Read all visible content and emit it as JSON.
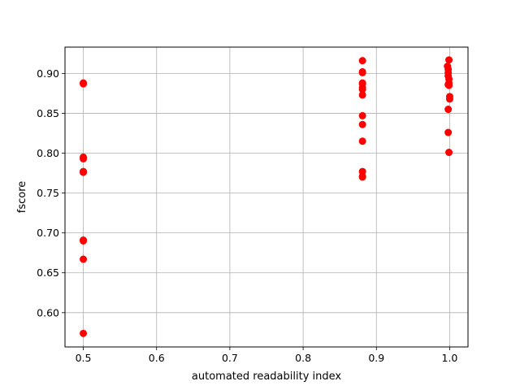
{
  "chart_data": {
    "type": "scatter",
    "title": "",
    "xlabel": "automated readability index",
    "ylabel": "fscore",
    "xlim": [
      0.475,
      1.025
    ],
    "ylim": [
      0.557,
      0.933
    ],
    "xticks": [
      0.5,
      0.6,
      0.7,
      0.8,
      0.9,
      1.0
    ],
    "xtick_labels": [
      "0.5",
      "0.6",
      "0.7",
      "0.8",
      "0.9",
      "1.0"
    ],
    "yticks": [
      0.6,
      0.65,
      0.7,
      0.75,
      0.8,
      0.85,
      0.9
    ],
    "ytick_labels": [
      "0.60",
      "0.65",
      "0.70",
      "0.75",
      "0.80",
      "0.85",
      "0.90"
    ],
    "grid": true,
    "marker_color": "#ff0000",
    "series": [
      {
        "x": [
          0.5,
          0.5,
          0.5,
          0.5,
          0.5,
          0.5,
          0.5,
          0.5,
          0.5,
          0.5,
          0.881,
          0.881,
          0.881,
          0.881,
          0.881,
          0.881,
          0.881,
          0.881,
          0.881,
          0.881,
          0.881,
          0.881,
          0.881,
          0.881,
          0.997,
          0.998,
          0.998,
          0.999,
          0.998,
          0.999,
          0.999,
          0.998,
          0.999,
          1.0,
          1.0,
          0.998,
          0.998,
          0.999
        ],
        "y": [
          0.888,
          0.887,
          0.795,
          0.793,
          0.777,
          0.776,
          0.691,
          0.69,
          0.667,
          0.574,
          0.916,
          0.902,
          0.901,
          0.888,
          0.887,
          0.882,
          0.88,
          0.873,
          0.847,
          0.836,
          0.815,
          0.777,
          0.771,
          0.77,
          0.909,
          0.905,
          0.901,
          0.917,
          0.897,
          0.893,
          0.888,
          0.886,
          0.885,
          0.871,
          0.868,
          0.855,
          0.826,
          0.801
        ]
      }
    ]
  }
}
